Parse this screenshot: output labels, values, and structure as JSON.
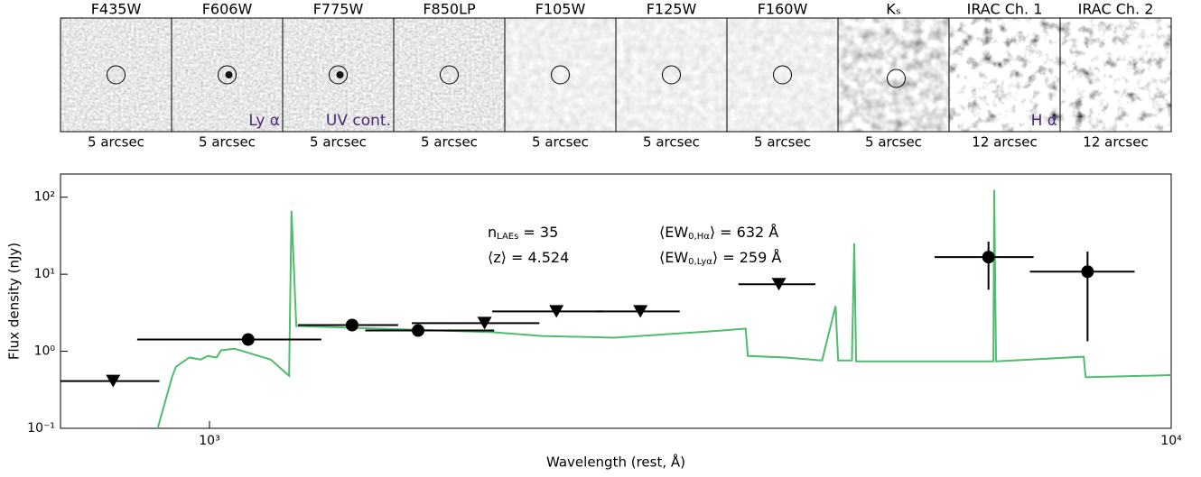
{
  "stamps": {
    "filters": [
      "F435W",
      "F606W",
      "F775W",
      "F850LP",
      "F105W",
      "F125W",
      "F160W",
      "Kₛ",
      "IRAC Ch. 1",
      "IRAC Ch. 2"
    ],
    "scales": [
      "5 arcsec",
      "5 arcsec",
      "5 arcsec",
      "5 arcsec",
      "5 arcsec",
      "5 arcsec",
      "5 arcsec",
      "5 arcsec",
      "12 arcsec",
      "12 arcsec"
    ],
    "notes": [
      null,
      "Ly α",
      "UV cont.",
      null,
      null,
      null,
      null,
      null,
      "H α",
      null
    ]
  },
  "chart_data": {
    "type": "scatter",
    "x_label": "Wavelength (rest, Å)",
    "y_label": "Flux density (nJy)",
    "xscale": "log",
    "yscale": "log",
    "xlim": [
      700,
      10000
    ],
    "ylim": [
      0.1,
      200
    ],
    "xticks": [
      {
        "value": 1000,
        "label": "10³"
      },
      {
        "value": 10000,
        "label": "10⁴"
      }
    ],
    "yticks": [
      {
        "value": 0.1,
        "label": "10⁻¹"
      },
      {
        "value": 1,
        "label": "10⁰"
      },
      {
        "value": 10,
        "label": "10¹"
      },
      {
        "value": 100,
        "label": "10²"
      }
    ],
    "annotations": [
      {
        "main": "n",
        "sub": "LAEs",
        "tail": " = 35"
      },
      {
        "main": "⟨z⟩",
        "tail": " = 4.524"
      },
      {
        "main": "⟨EW",
        "sub": "0,Hα",
        "tail": "⟩ = 632 Å"
      },
      {
        "main": "⟨EW",
        "sub": "0,Lyα",
        "tail": "⟩ = 259 Å"
      }
    ],
    "sed": {
      "color": "#4dbd6b",
      "x": [
        884,
        914,
        923,
        953,
        979,
        996,
        1017,
        1028,
        1062,
        1158,
        1210,
        1217,
        1231,
        1968,
        2217,
        2637,
        3415,
        3610,
        3629,
        3975,
        4335,
        4477,
        4505,
        4656,
        4682,
        4703,
        6533,
        6546,
        6574,
        8110,
        8148,
        10000
      ],
      "y": [
        0.103,
        0.456,
        0.63,
        0.83,
        0.78,
        0.87,
        0.83,
        1.03,
        1.08,
        0.78,
        0.48,
        66.6,
        2.13,
        1.77,
        1.58,
        1.5,
        1.86,
        1.97,
        0.87,
        0.83,
        0.76,
        3.87,
        0.76,
        0.76,
        25.1,
        0.74,
        0.74,
        124,
        0.74,
        0.85,
        0.46,
        0.49
      ]
    },
    "detections": {
      "color": "#000000",
      "x": [
        1097,
        1407,
        1648,
        6457,
        8185
      ],
      "y": [
        1.42,
        2.19,
        1.86,
        16.7,
        10.8
      ],
      "x_low": [
        841,
        1236,
        1452,
        5675,
        7129
      ],
      "x_high": [
        1307,
        1571,
        1977,
        7193,
        9162
      ],
      "y_low": [
        null,
        null,
        null,
        6.3,
        1.35
      ],
      "y_high": [
        null,
        null,
        null,
        26.5,
        19.7
      ]
    },
    "upper_limits": {
      "color": "#000000",
      "x": [
        794,
        1932,
        2295,
        2806,
        3909
      ],
      "y": [
        0.41,
        2.32,
        3.29,
        3.29,
        7.42
      ],
      "x_low": [
        700,
        1623,
        1968,
        2523,
        3548
      ],
      "x_high": [
        887,
        2203,
        2565,
        3083,
        4266
      ]
    }
  }
}
